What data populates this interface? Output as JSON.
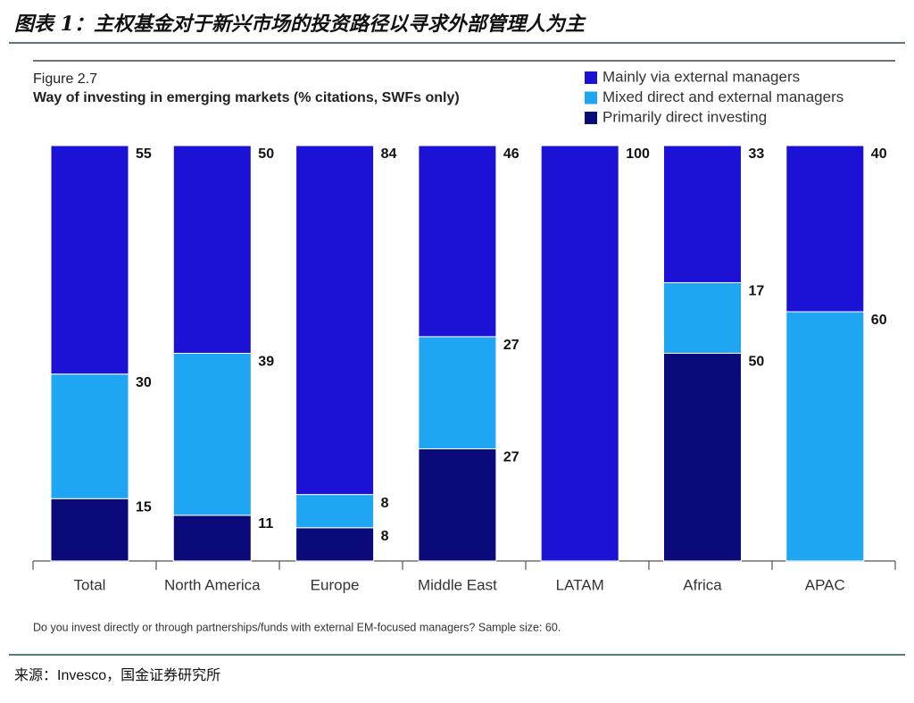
{
  "header": {
    "title": "图表 1：主权基金对于新兴市场的投资路径以寻求外部管理人为主"
  },
  "chart_data": {
    "type": "bar",
    "stacked": true,
    "figure_label": "Figure 2.7",
    "title": "Way of investing in emerging markets (% citations, SWFs only)",
    "categories": [
      "Total",
      "North America",
      "Europe",
      "Middle East",
      "LATAM",
      "Africa",
      "APAC"
    ],
    "series": [
      {
        "name": "Primarily direct investing",
        "color": "#0b0a7a",
        "values": [
          15,
          11,
          8,
          27,
          null,
          50,
          null
        ]
      },
      {
        "name": "Mixed direct and external managers",
        "color": "#1ea6f2",
        "values": [
          30,
          39,
          8,
          27,
          null,
          17,
          60
        ]
      },
      {
        "name": "Mainly via external managers",
        "color": "#1c12d6",
        "values": [
          55,
          50,
          84,
          46,
          100,
          33,
          40
        ]
      }
    ],
    "note": "Do you invest directly or through partnerships/funds with external EM-focused managers? Sample size: 60."
  },
  "footer": {
    "source": "来源：Invesco，国金证券研究所"
  }
}
